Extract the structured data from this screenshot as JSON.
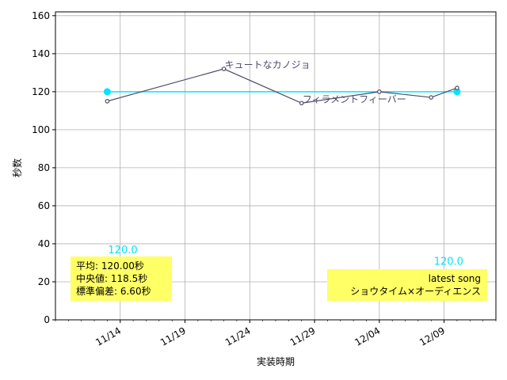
{
  "chart_data": {
    "type": "line",
    "xlabel": "実装時期",
    "ylabel": "秒数",
    "ylim": [
      0,
      162
    ],
    "yticks": [
      0,
      20,
      40,
      60,
      80,
      100,
      120,
      140,
      160
    ],
    "xlim": [
      "2023-11-09",
      "2023-12-13"
    ],
    "xticks": [
      "2023-11-14",
      "2023-11-19",
      "2023-11-24",
      "2023-11-29",
      "2023-12-04",
      "2023-12-09"
    ],
    "xtick_labels": [
      "11/14",
      "11/19",
      "11/24",
      "11/29",
      "12/04",
      "12/09"
    ],
    "grid": true,
    "series": [
      {
        "x": [
          "2023-11-13",
          "2023-11-22",
          "2023-11-28",
          "2023-12-04",
          "2023-12-08",
          "2023-12-10"
        ],
        "values": [
          115,
          132,
          114,
          120,
          117,
          122
        ],
        "color": "#4a4a6a"
      }
    ],
    "mean_line": {
      "value": 120.0,
      "color": "#00e5ff",
      "left_label": "120.0",
      "right_label": "120.0"
    },
    "annotations": [
      {
        "text": "キュートなカノジョ",
        "x": "2023-11-22",
        "y": 132
      },
      {
        "text": "フィラメントフィーバー",
        "x": "2023-11-28",
        "y": 114
      }
    ],
    "stats_box": {
      "lines": [
        "平均: 120.00秒",
        "中央値: 118.5秒",
        "標準偏差:   6.60秒"
      ],
      "color": "#ffff66"
    },
    "latest_box": {
      "lines": [
        "latest song",
        "ショウタイム×オーディエンス"
      ],
      "color": "#ffff66"
    }
  }
}
